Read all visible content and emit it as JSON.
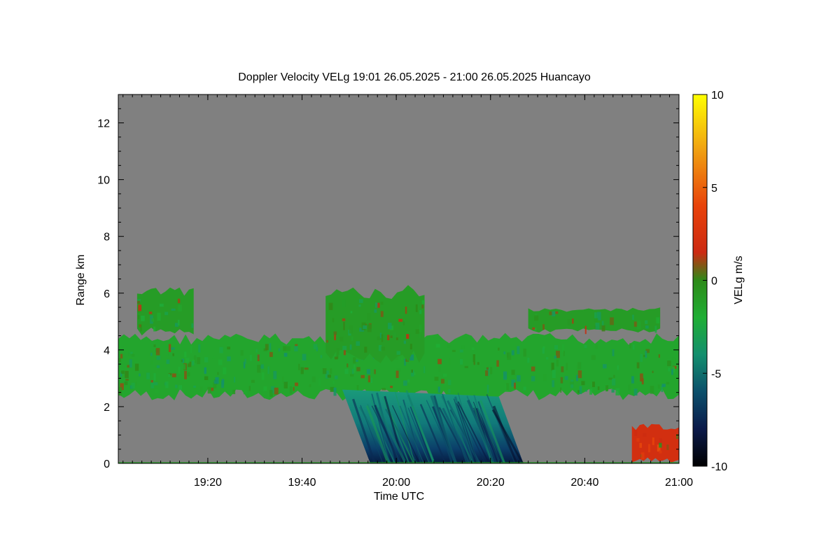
{
  "chart_data": {
    "type": "heatmap",
    "title": "Doppler Velocity VELg   19:01 26.05.2025 - 21:00 26.05.2025 Huancayo",
    "xlabel": "Time UTC",
    "ylabel": "Range km",
    "x_range": [
      "19:01",
      "21:00"
    ],
    "x_ticks": [
      "19:20",
      "19:40",
      "20:00",
      "20:20",
      "20:40",
      "21:00"
    ],
    "ylim": [
      0,
      13
    ],
    "y_ticks": [
      "0",
      "2",
      "4",
      "6",
      "8",
      "10",
      "12"
    ],
    "colorbar": {
      "label": "VELg m/s",
      "range": [
        -10,
        10
      ],
      "ticks": [
        "10",
        "5",
        "0",
        "-5",
        "-10"
      ],
      "stops": [
        {
          "value": -10,
          "color": "#000000"
        },
        {
          "value": -8,
          "color": "#0a1a4a"
        },
        {
          "value": -6,
          "color": "#0b4f6b"
        },
        {
          "value": -4,
          "color": "#138f6e"
        },
        {
          "value": -2,
          "color": "#1fae34"
        },
        {
          "value": 0,
          "color": "#2d8a18"
        },
        {
          "value": 1.5,
          "color": "#cc2a12"
        },
        {
          "value": 4,
          "color": "#e8420a"
        },
        {
          "value": 7,
          "color": "#f0a012"
        },
        {
          "value": 10,
          "color": "#ffff00"
        }
      ]
    },
    "background_color": "#808080",
    "features": [
      {
        "name": "mid-level cloud band",
        "time": [
          "19:01",
          "21:00"
        ],
        "range_km": [
          2.2,
          4.6
        ],
        "velocity_ms": -1.5
      },
      {
        "name": "convective tower",
        "time": [
          "19:45",
          "20:06"
        ],
        "range_km": [
          3.5,
          6.3
        ],
        "velocity_ms": -1
      },
      {
        "name": "upper cloud 19:05-19:17",
        "time": [
          "19:05",
          "19:17"
        ],
        "range_km": [
          4.5,
          6.2
        ],
        "velocity_ms": -1
      },
      {
        "name": "upper cloud 20:28-20:56",
        "time": [
          "20:28",
          "20:56"
        ],
        "range_km": [
          4.6,
          5.5
        ],
        "velocity_ms": -1
      },
      {
        "name": "precipitation shaft",
        "time": [
          "19:53",
          "20:24"
        ],
        "range_km": [
          0,
          2.6
        ],
        "velocity_ms": -6
      },
      {
        "name": "near-surface updraft",
        "time": [
          "20:50",
          "21:00"
        ],
        "range_km": [
          0,
          1.4
        ],
        "velocity_ms": 2
      }
    ]
  }
}
